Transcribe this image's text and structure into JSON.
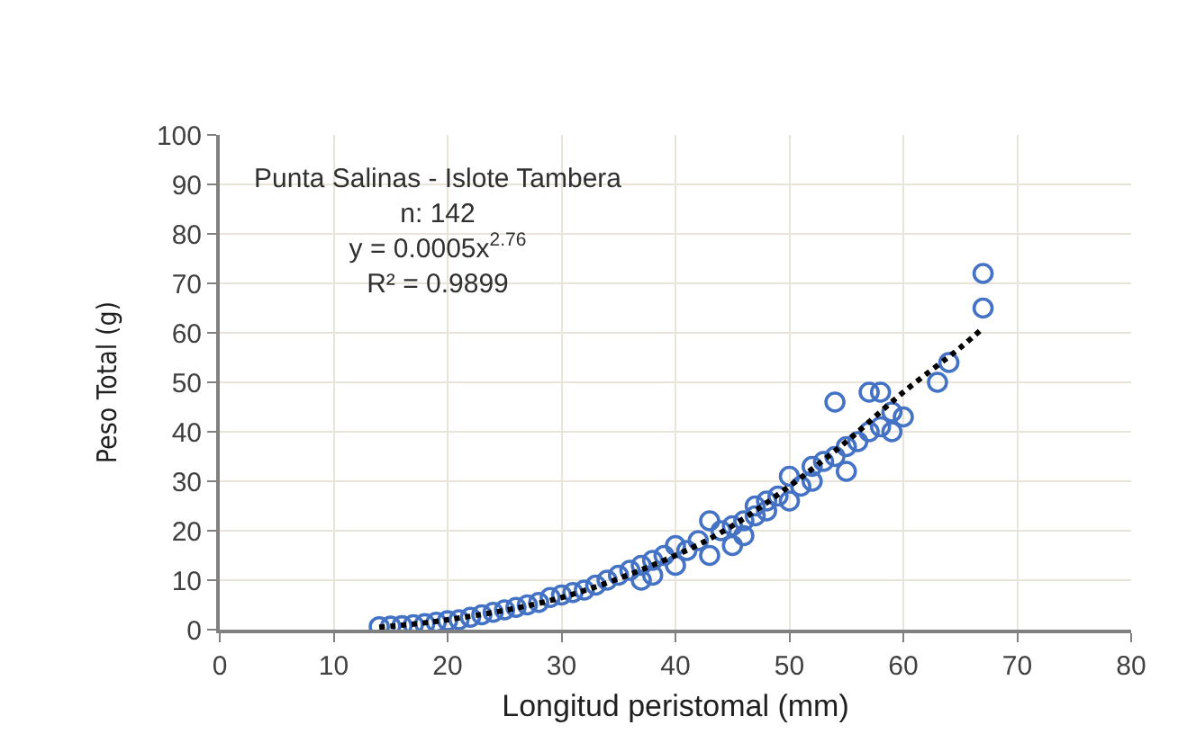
{
  "chart_data": {
    "type": "scatter",
    "xlabel": "Longitud peristomal (mm)",
    "ylabel": "Peso Total (g)",
    "annotations": [
      "Punta Salinas - Islote Tambera",
      "n: 142",
      "y = 0.0005x$^{2.76}$",
      "R² = 0.9899"
    ],
    "xlim": [
      0,
      80
    ],
    "xticks": [
      0,
      10,
      20,
      30,
      40,
      50,
      60,
      70,
      80
    ],
    "ylim": [
      0,
      100
    ],
    "yticks": [
      0,
      10,
      20,
      30,
      40,
      50,
      60,
      70,
      80,
      90,
      100
    ],
    "grid": true,
    "marker": "circle",
    "series": [
      {
        "color": "#4472c4",
        "x": [
          14,
          15,
          16,
          17,
          18,
          19,
          20,
          21,
          22,
          23,
          24,
          25,
          26,
          27,
          28,
          29,
          30,
          31,
          32,
          33,
          34,
          35,
          36,
          37,
          37,
          38,
          38,
          39,
          40,
          40,
          41,
          42,
          43,
          43,
          44,
          45,
          45,
          46,
          46,
          47,
          47,
          48,
          48,
          49,
          50,
          50,
          51,
          52,
          52,
          53,
          54,
          54,
          55,
          55,
          56,
          57,
          57,
          58,
          58,
          59,
          59,
          60,
          63,
          64,
          67,
          67
        ],
        "values": [
          0.6,
          0.7,
          0.8,
          1,
          1.2,
          1.5,
          1.8,
          2,
          2.5,
          3,
          3.5,
          4,
          4.5,
          5,
          5.5,
          6.5,
          7,
          7.5,
          8,
          9,
          10,
          11,
          12,
          13,
          10,
          11,
          14,
          15,
          17,
          13,
          16,
          18,
          15,
          22,
          20,
          21,
          17,
          22,
          19,
          25,
          23,
          24,
          26,
          27,
          31,
          26,
          29,
          33,
          30,
          34,
          35,
          46,
          32,
          37,
          38,
          48,
          40,
          48,
          41,
          44,
          40,
          43,
          50,
          54,
          72,
          65
        ]
      },
      {
        "type": "line",
        "color": "#000000",
        "line_style": "dotted",
        "marker": "none",
        "x": [
          14,
          20,
          30,
          40,
          45,
          50,
          55,
          60,
          65,
          67
        ],
        "values": [
          0.5,
          2,
          6.5,
          15,
          21,
          29,
          38,
          48,
          57,
          61
        ]
      }
    ]
  }
}
